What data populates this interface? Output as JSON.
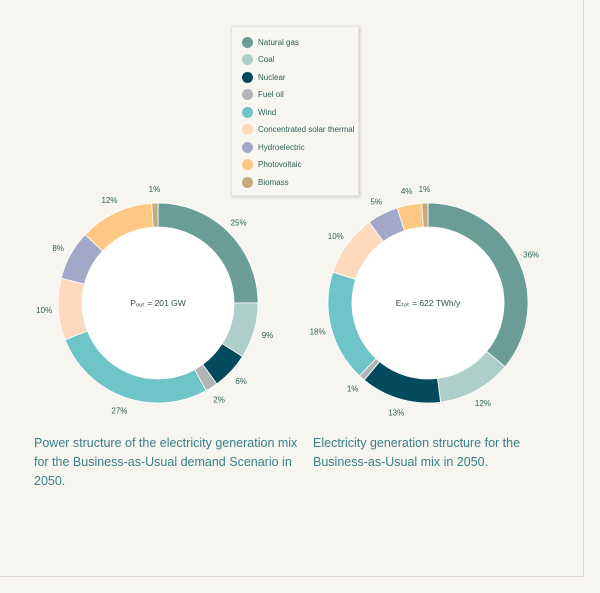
{
  "legend": {
    "items": [
      {
        "label": "Natural gas",
        "color": "#6a9d95"
      },
      {
        "label": "Coal",
        "color": "#aecfc9"
      },
      {
        "label": "Nuclear",
        "color": "#044a5e"
      },
      {
        "label": "Fuel oil",
        "color": "#b2b5b8"
      },
      {
        "label": "Wind",
        "color": "#6ec4c6"
      },
      {
        "label": "Concentrated solar thermal",
        "color": "#fdd9bd"
      },
      {
        "label": "Hydroelectric",
        "color": "#a3a8c8"
      },
      {
        "label": "Photovoltaic",
        "color": "#fdc884"
      },
      {
        "label": "Biomass",
        "color": "#c5ab7c"
      }
    ]
  },
  "chart_data": [
    {
      "type": "pie",
      "donut": true,
      "center_label": "Pₒᵤₜ = 201 GW",
      "caption": "Power structure of the electricity generation mix for the Business-as-Usual demand Scenario in 2050.",
      "categories": [
        "Natural gas",
        "Coal",
        "Nuclear",
        "Fuel oil",
        "Wind",
        "Concentrated solar thermal",
        "Hydroelectric",
        "Photovoltaic",
        "Biomass"
      ],
      "values": [
        25,
        9,
        6,
        2,
        27,
        10,
        8,
        12,
        1
      ],
      "value_labels": [
        "25%",
        "9%",
        "6%",
        "2%",
        "27%",
        "10%",
        "8%",
        "12%",
        "1%"
      ]
    },
    {
      "type": "pie",
      "donut": true,
      "center_label": "Eₜₒₜ = 622 TWh/y",
      "caption": "Electricity generation structure for the Business-as-Usual mix in 2050.",
      "categories": [
        "Natural gas",
        "Coal",
        "Nuclear",
        "Fuel oil",
        "Wind",
        "Concentrated solar thermal",
        "Hydroelectric",
        "Photovoltaic",
        "Biomass"
      ],
      "values": [
        36,
        12,
        13,
        1,
        18,
        10,
        5,
        4,
        1
      ],
      "value_labels": [
        "36%",
        "12%",
        "13%",
        "1%",
        "18%",
        "10%",
        "5%",
        "4%",
        "1%"
      ]
    }
  ]
}
